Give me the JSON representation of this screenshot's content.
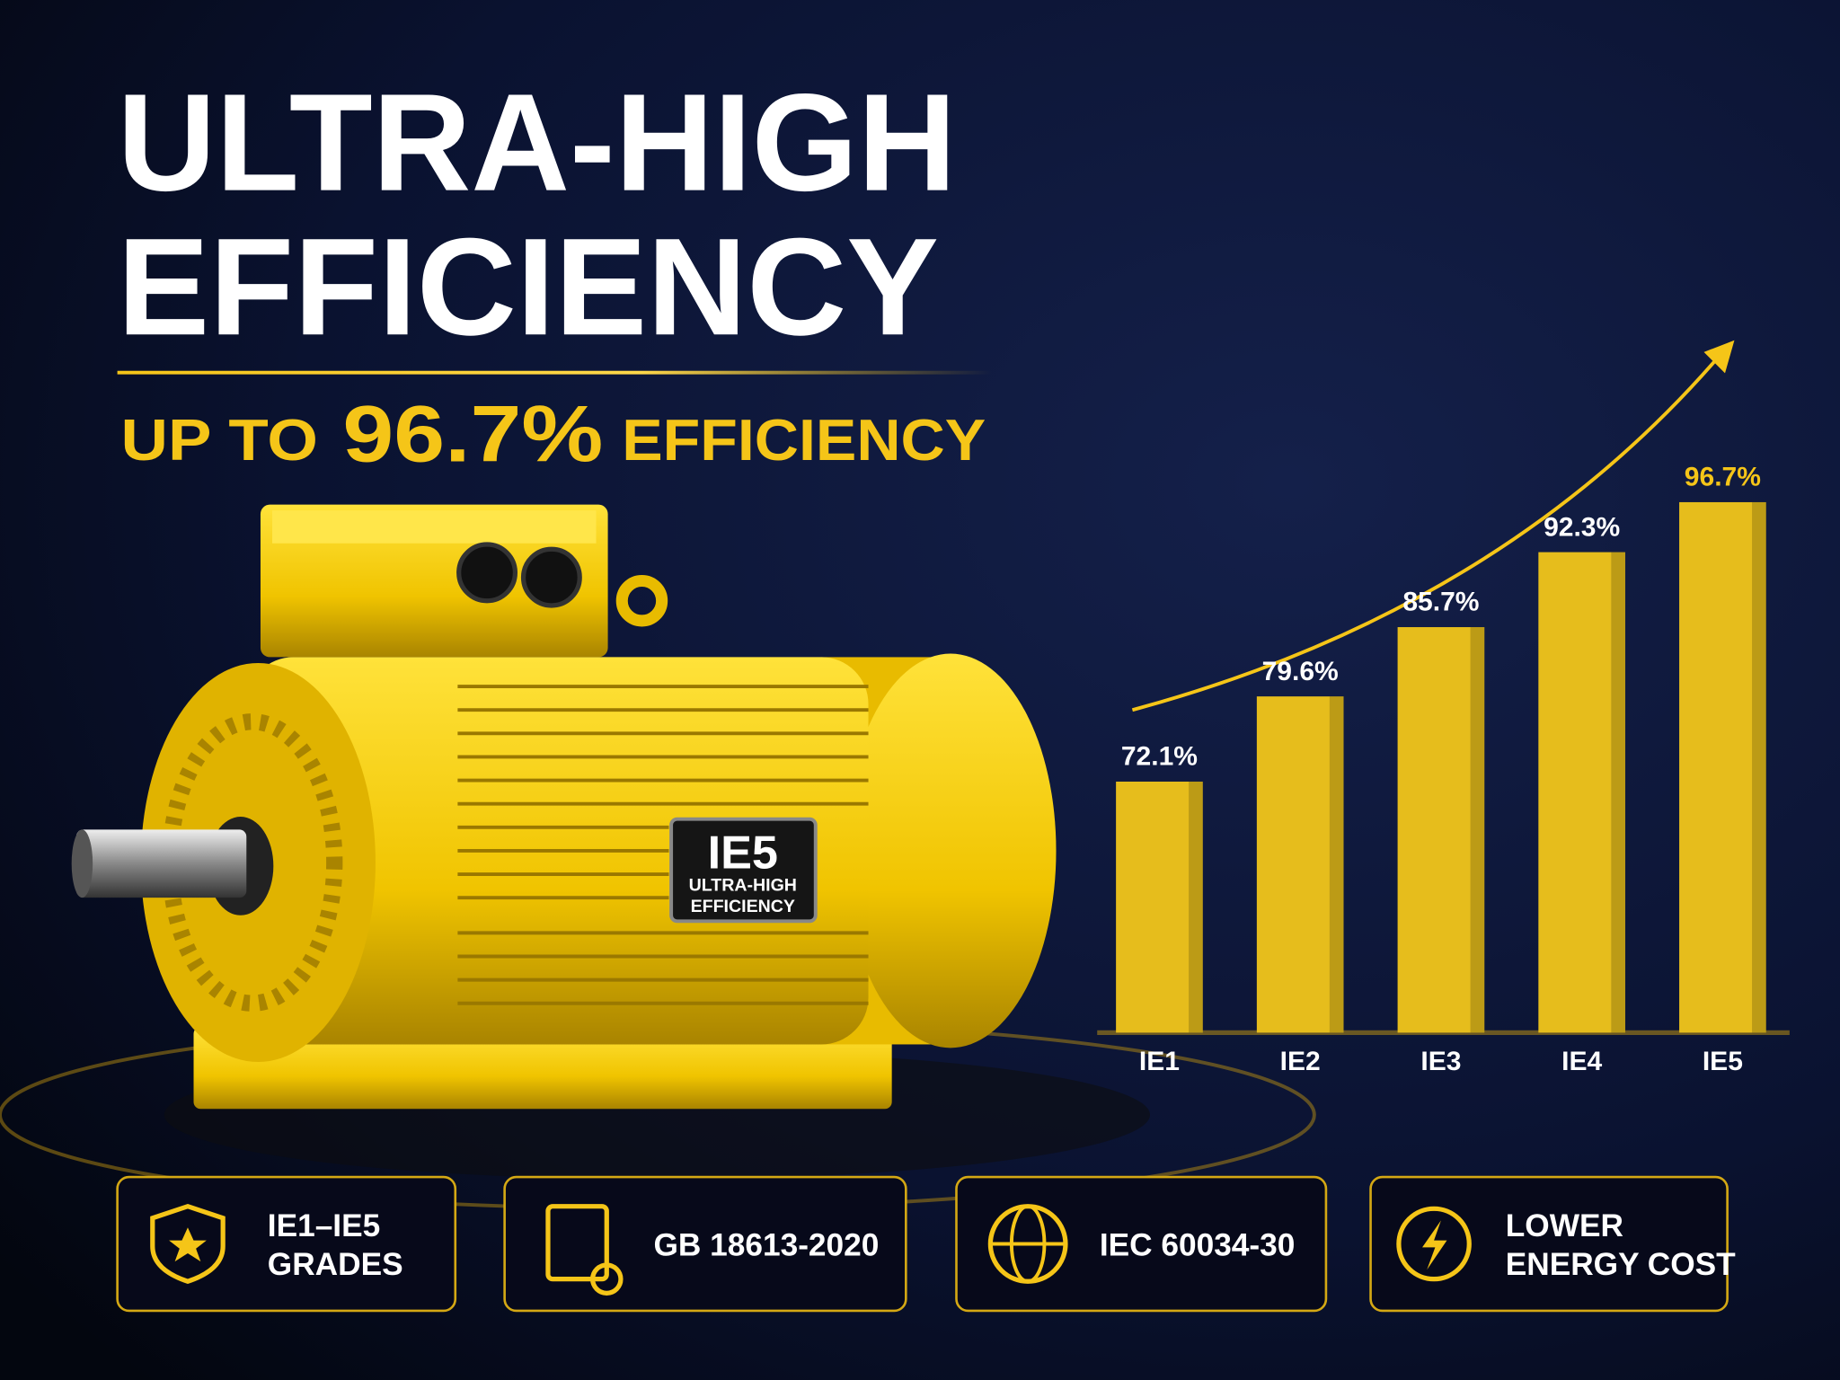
{
  "header": {
    "title_line1": "ULTRA-HIGH",
    "title_line2": "EFFICIENCY",
    "subtitle_prefix": "UP TO",
    "subtitle_highlight": "96.7%",
    "subtitle_suffix": "EFFICIENCY"
  },
  "nameplate": {
    "grade": "IE5",
    "line1": "ULTRA-HIGH",
    "line2": "EFFICIENCY"
  },
  "chart_data": {
    "type": "bar",
    "categories": [
      "IE1",
      "IE2",
      "IE3",
      "IE4",
      "IE5"
    ],
    "values": [
      72.1,
      79.6,
      85.7,
      92.3,
      96.7
    ],
    "value_labels": [
      "72.1%",
      "79.6%",
      "85.7%",
      "92.3%",
      "96.7%"
    ],
    "color": "#e6bd1c",
    "ylim": [
      50,
      100
    ]
  },
  "badges": [
    {
      "lines": [
        "IE1–IE5",
        "GRADES"
      ]
    },
    {
      "lines": [
        "GB 18613-2020"
      ]
    },
    {
      "lines": [
        "IEC 60034-30"
      ]
    },
    {
      "lines": [
        "LOWER",
        "ENERGY COST"
      ]
    }
  ]
}
